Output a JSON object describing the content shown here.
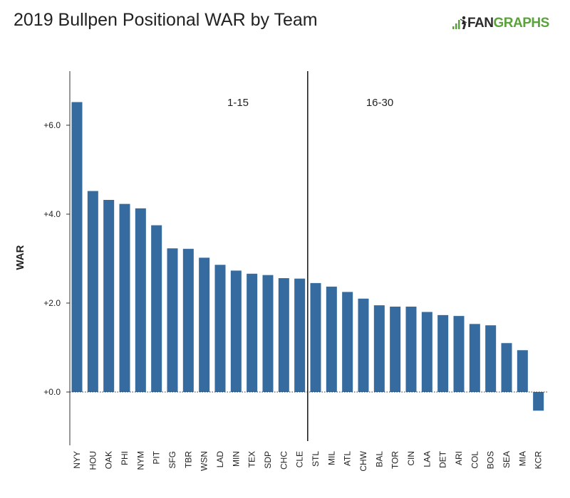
{
  "title": "2019 Bullpen Positional WAR by Team",
  "logo": {
    "text_a": "FAN",
    "text_b": "GRAPHS",
    "color_a": "#2b2b2b",
    "color_b": "#5aa33a"
  },
  "chart_data": {
    "type": "bar",
    "ylabel": "WAR",
    "xlabel": "",
    "ylim": [
      -1.1,
      7.2
    ],
    "yticks": [
      0,
      2,
      4,
      6
    ],
    "ytick_labels": [
      "+0.0",
      "+2.0",
      "+4.0",
      "+6.0"
    ],
    "bar_color": "#356b9f",
    "divider_after": "CLE",
    "group_labels": [
      "1-15",
      "16-30"
    ],
    "categories": [
      "NYY",
      "HOU",
      "OAK",
      "PHI",
      "NYM",
      "PIT",
      "SFG",
      "TBR",
      "WSN",
      "LAD",
      "MIN",
      "TEX",
      "SDP",
      "CHC",
      "CLE",
      "STL",
      "MIL",
      "ATL",
      "CHW",
      "BAL",
      "TOR",
      "CIN",
      "LAA",
      "DET",
      "ARI",
      "COL",
      "BOS",
      "SEA",
      "MIA",
      "KCR"
    ],
    "values": [
      6.52,
      4.52,
      4.32,
      4.23,
      4.13,
      3.75,
      3.23,
      3.22,
      3.02,
      2.86,
      2.73,
      2.66,
      2.63,
      2.56,
      2.55,
      2.45,
      2.37,
      2.25,
      2.1,
      1.95,
      1.92,
      1.92,
      1.8,
      1.73,
      1.71,
      1.53,
      1.5,
      1.1,
      0.94,
      -0.42
    ]
  }
}
